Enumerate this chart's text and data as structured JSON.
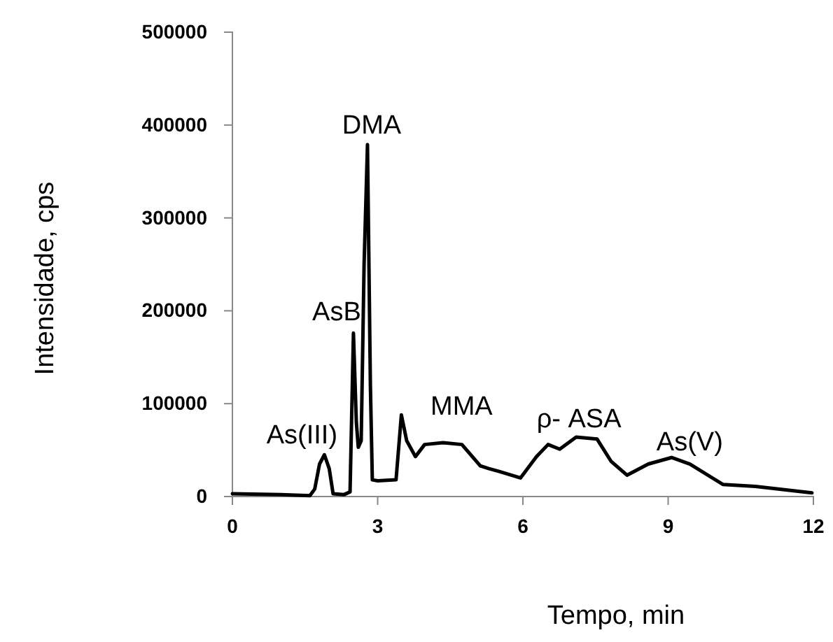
{
  "chart_data": {
    "type": "line",
    "xlabel": "Tempo, min",
    "ylabel": "Intensidade, cps",
    "x": [
      0,
      1.0,
      1.6,
      1.7,
      1.8,
      1.9,
      2.0,
      2.08,
      2.3,
      2.43,
      2.5,
      2.56,
      2.6,
      2.66,
      2.72,
      2.79,
      2.85,
      2.89,
      3.0,
      3.38,
      3.49,
      3.6,
      3.78,
      3.97,
      4.35,
      4.74,
      5.12,
      5.3,
      5.51,
      5.95,
      6.28,
      6.52,
      6.76,
      7.1,
      7.53,
      7.82,
      8.15,
      8.59,
      9.07,
      9.45,
      10.13,
      10.8,
      11.97
    ],
    "series": [
      {
        "color": "#000000",
        "values": [
          3000,
          2000,
          1000,
          8000,
          35000,
          45000,
          30000,
          3000,
          2000,
          5000,
          176000,
          80000,
          53000,
          60000,
          250000,
          379000,
          120000,
          18000,
          17000,
          18000,
          88000,
          60000,
          43000,
          56000,
          58000,
          56000,
          33000,
          30000,
          27000,
          20000,
          43000,
          56000,
          51000,
          64000,
          62000,
          38000,
          23000,
          35000,
          42000,
          35000,
          13000,
          11000,
          4000
        ]
      }
    ],
    "xlim": [
      0,
      12
    ],
    "xticks": [
      0,
      3,
      6,
      9,
      12
    ],
    "ylim": [
      0,
      500000
    ],
    "yticks": [
      0,
      100000,
      200000,
      300000,
      400000,
      500000
    ],
    "grid": false,
    "marker": "none",
    "line_style": "solid",
    "annotations": [
      {
        "text": "As(III)",
        "x": 1.9,
        "y": 45000
      },
      {
        "text": "AsB",
        "x": 2.5,
        "y": 176000
      },
      {
        "text": "DMA",
        "x": 2.79,
        "y": 379000
      },
      {
        "text": "MMA",
        "x": 3.49,
        "y": 88000
      },
      {
        "text": "ρ- ASA",
        "x": 7.1,
        "y": 64000
      },
      {
        "text": "As(V)",
        "x": 9.07,
        "y": 42000
      }
    ]
  }
}
